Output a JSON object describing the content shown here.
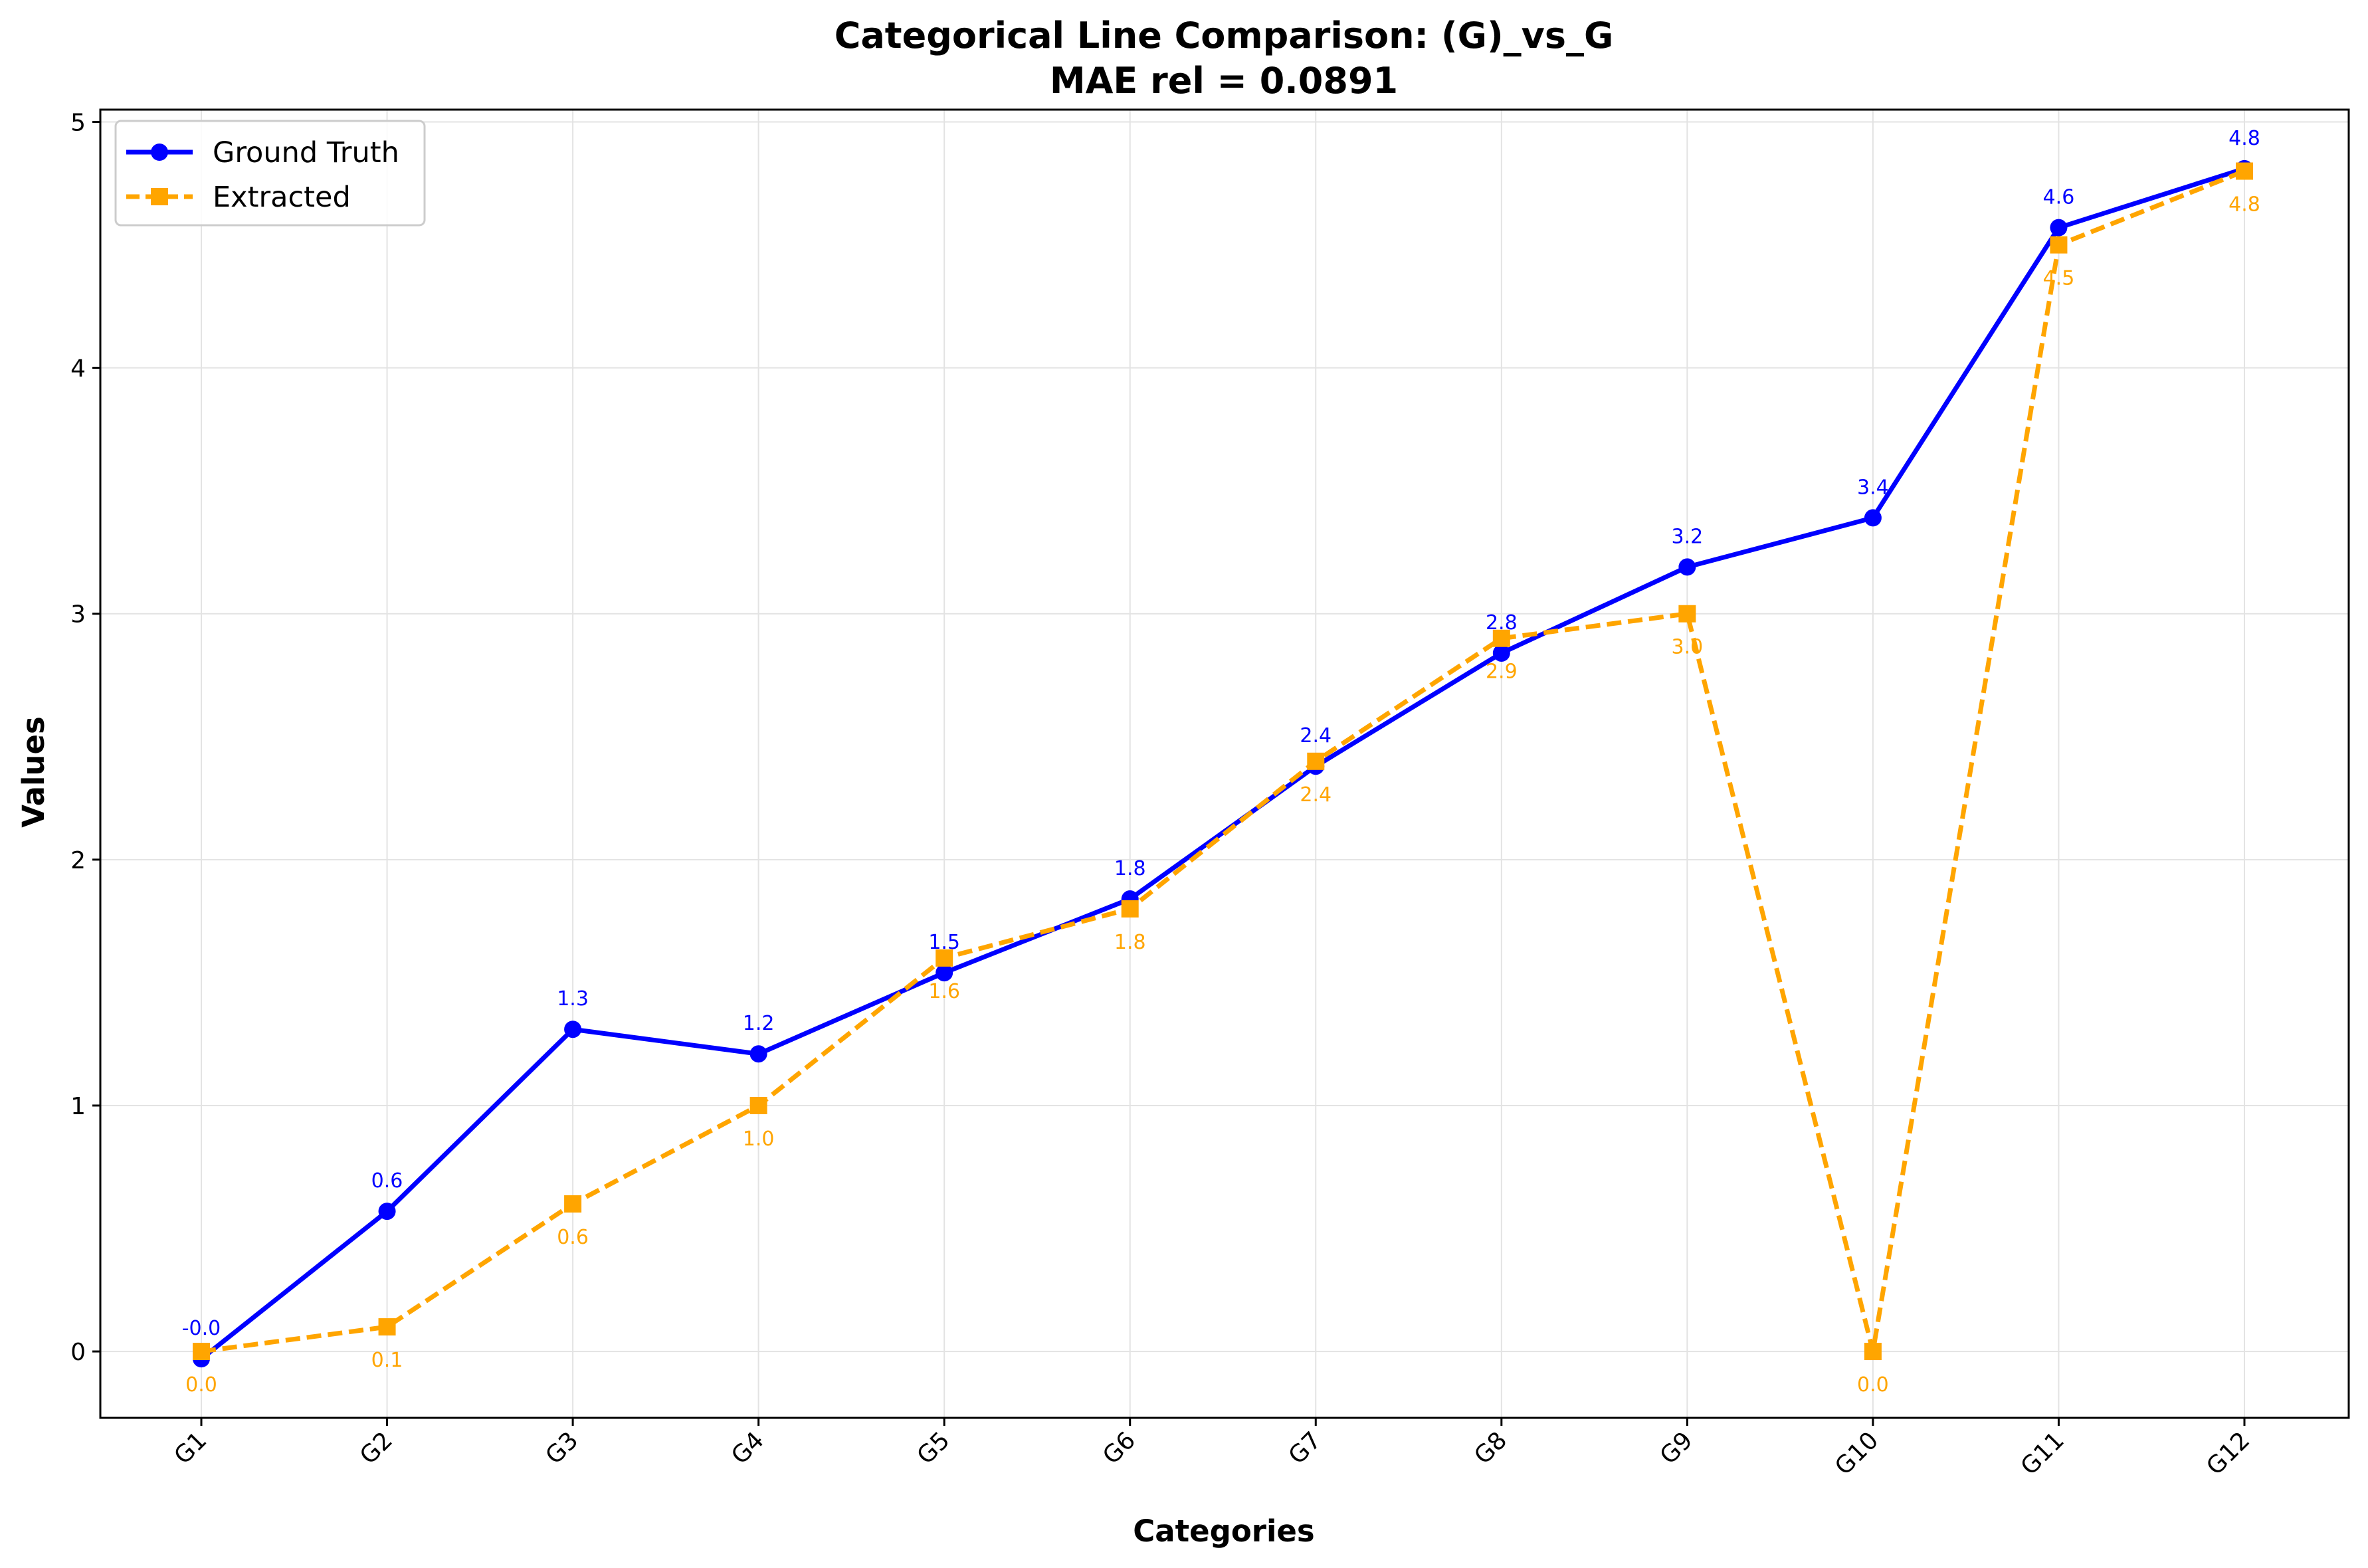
{
  "chart_data": {
    "type": "line",
    "title": "Categorical Line Comparison: (G)_vs_G",
    "subtitle": "MAE rel = 0.0891",
    "xlabel": "Categories",
    "ylabel": "Values",
    "categories": [
      "G1",
      "G2",
      "G3",
      "G4",
      "G5",
      "G6",
      "G7",
      "G8",
      "G9",
      "G10",
      "G11",
      "G12"
    ],
    "ylim": [
      -0.27,
      5.05
    ],
    "yticks": [
      0,
      1,
      2,
      3,
      4,
      5
    ],
    "grid": true,
    "legend_position": "top-left",
    "series": [
      {
        "name": "Ground Truth",
        "color": "#0000ff",
        "marker": "circle",
        "line_style": "solid",
        "values": [
          -0.03,
          0.57,
          1.31,
          1.21,
          1.54,
          1.84,
          2.38,
          2.84,
          3.19,
          3.39,
          4.57,
          4.81
        ],
        "labels": [
          "-0.0",
          "0.6",
          "1.3",
          "1.2",
          "1.5",
          "1.8",
          "2.4",
          "2.8",
          "3.2",
          "3.4",
          "4.6",
          "4.8"
        ]
      },
      {
        "name": "Extracted",
        "color": "#ffa500",
        "marker": "square",
        "line_style": "dashed",
        "values": [
          0.0,
          0.1,
          0.6,
          1.0,
          1.6,
          1.8,
          2.4,
          2.9,
          3.0,
          0.0,
          4.5,
          4.8
        ],
        "labels": [
          "0.0",
          "0.1",
          "0.6",
          "1.0",
          "1.6",
          "1.8",
          "2.4",
          "2.9",
          "3.0",
          "0.0",
          "4.5",
          "4.8"
        ]
      }
    ]
  }
}
